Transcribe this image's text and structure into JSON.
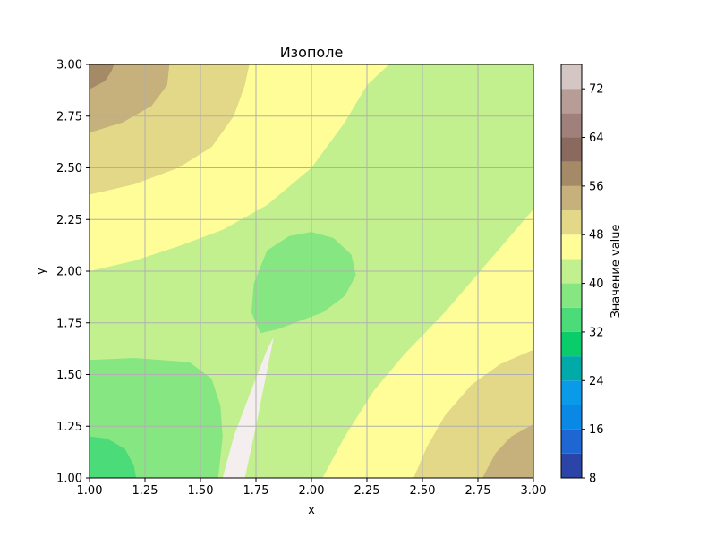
{
  "chart_data": {
    "type": "contourf",
    "title": "Изополе",
    "xlabel": "x",
    "ylabel": "y",
    "xlim": [
      1.0,
      3.0
    ],
    "ylim": [
      1.0,
      3.0
    ],
    "grid": true,
    "x_ticks": [
      "1.00",
      "1.25",
      "1.50",
      "1.75",
      "2.00",
      "2.25",
      "2.50",
      "2.75",
      "3.00"
    ],
    "y_ticks": [
      "1.00",
      "1.25",
      "1.50",
      "1.75",
      "2.00",
      "2.25",
      "2.50",
      "2.75",
      "3.00"
    ],
    "colorbar": {
      "label": "Значение value",
      "range": [
        8,
        76
      ],
      "ticks": [
        "8",
        "16",
        "24",
        "32",
        "40",
        "48",
        "56",
        "64",
        "72"
      ],
      "levels": [
        {
          "from": 8,
          "to": 12,
          "color": "#2a44a8"
        },
        {
          "from": 12,
          "to": 16,
          "color": "#1e66d2"
        },
        {
          "from": 16,
          "to": 20,
          "color": "#0a88e6"
        },
        {
          "from": 20,
          "to": 24,
          "color": "#0a9be8"
        },
        {
          "from": 24,
          "to": 28,
          "color": "#00aaa8"
        },
        {
          "from": 28,
          "to": 32,
          "color": "#0bcc6a"
        },
        {
          "from": 32,
          "to": 36,
          "color": "#4bdb78"
        },
        {
          "from": 36,
          "to": 40,
          "color": "#86e682"
        },
        {
          "from": 40,
          "to": 44,
          "color": "#c2f08e"
        },
        {
          "from": 44,
          "to": 48,
          "color": "#fefd98"
        },
        {
          "from": 48,
          "to": 52,
          "color": "#e3d888"
        },
        {
          "from": 52,
          "to": 56,
          "color": "#c6b07b"
        },
        {
          "from": 56,
          "to": 60,
          "color": "#a48a66"
        },
        {
          "from": 60,
          "to": 64,
          "color": "#8a6a5e"
        },
        {
          "from": 64,
          "to": 68,
          "color": "#a0807a"
        },
        {
          "from": 68,
          "to": 72,
          "color": "#b89c96"
        },
        {
          "from": 72,
          "to": 76,
          "color": "#d4c6c2"
        },
        {
          "from": 76,
          "to": 80,
          "color": "#f4eeee"
        }
      ]
    },
    "regions": [
      {
        "value_range": [
          44,
          48
        ],
        "polygon": [
          [
            1.0,
            2.0
          ],
          [
            1.2,
            2.05
          ],
          [
            1.4,
            2.12
          ],
          [
            1.6,
            2.2
          ],
          [
            1.8,
            2.32
          ],
          [
            2.0,
            2.5
          ],
          [
            2.15,
            2.72
          ],
          [
            2.25,
            2.9
          ],
          [
            2.35,
            3.0
          ],
          [
            1.0,
            3.0
          ]
        ]
      },
      {
        "value_range": [
          44,
          48
        ],
        "polygon": [
          [
            2.05,
            1.0
          ],
          [
            2.15,
            1.2
          ],
          [
            2.28,
            1.42
          ],
          [
            2.42,
            1.6
          ],
          [
            2.6,
            1.8
          ],
          [
            2.8,
            2.05
          ],
          [
            3.0,
            2.3
          ],
          [
            3.0,
            1.0
          ]
        ]
      },
      {
        "value_range": [
          48,
          52
        ],
        "polygon": [
          [
            1.0,
            2.37
          ],
          [
            1.2,
            2.42
          ],
          [
            1.4,
            2.5
          ],
          [
            1.55,
            2.6
          ],
          [
            1.65,
            2.75
          ],
          [
            1.7,
            2.9
          ],
          [
            1.72,
            3.0
          ],
          [
            1.0,
            3.0
          ]
        ]
      },
      {
        "value_range": [
          48,
          52
        ],
        "polygon": [
          [
            2.46,
            1.0
          ],
          [
            2.52,
            1.15
          ],
          [
            2.6,
            1.3
          ],
          [
            2.72,
            1.45
          ],
          [
            2.85,
            1.55
          ],
          [
            3.0,
            1.62
          ],
          [
            3.0,
            1.0
          ]
        ]
      },
      {
        "value_range": [
          52,
          56
        ],
        "polygon": [
          [
            1.0,
            2.67
          ],
          [
            1.15,
            2.72
          ],
          [
            1.28,
            2.8
          ],
          [
            1.35,
            2.9
          ],
          [
            1.36,
            3.0
          ],
          [
            1.0,
            3.0
          ]
        ]
      },
      {
        "value_range": [
          52,
          56
        ],
        "polygon": [
          [
            2.77,
            1.0
          ],
          [
            2.83,
            1.12
          ],
          [
            2.9,
            1.2
          ],
          [
            3.0,
            1.26
          ],
          [
            3.0,
            1.0
          ]
        ]
      },
      {
        "value_range": [
          56,
          60
        ],
        "polygon": [
          [
            1.0,
            2.88
          ],
          [
            1.07,
            2.92
          ],
          [
            1.1,
            2.97
          ],
          [
            1.11,
            3.0
          ],
          [
            1.0,
            3.0
          ]
        ]
      },
      {
        "value_range": [
          36,
          40
        ],
        "polygon": [
          [
            1.0,
            1.0
          ],
          [
            1.0,
            1.57
          ],
          [
            1.2,
            1.58
          ],
          [
            1.45,
            1.56
          ],
          [
            1.55,
            1.48
          ],
          [
            1.59,
            1.35
          ],
          [
            1.6,
            1.2
          ],
          [
            1.58,
            1.0
          ]
        ]
      },
      {
        "value_range": [
          36,
          40
        ],
        "polygon": [
          [
            1.77,
            1.7
          ],
          [
            1.73,
            1.8
          ],
          [
            1.74,
            1.94
          ],
          [
            1.8,
            2.1
          ],
          [
            1.9,
            2.17
          ],
          [
            2.0,
            2.19
          ],
          [
            2.1,
            2.16
          ],
          [
            2.18,
            2.08
          ],
          [
            2.2,
            1.98
          ],
          [
            2.15,
            1.88
          ],
          [
            2.05,
            1.8
          ],
          [
            1.95,
            1.76
          ],
          [
            1.85,
            1.72
          ]
        ]
      },
      {
        "value_range": [
          32,
          36
        ],
        "polygon": [
          [
            1.0,
            1.0
          ],
          [
            1.0,
            1.2
          ],
          [
            1.08,
            1.19
          ],
          [
            1.16,
            1.14
          ],
          [
            1.2,
            1.06
          ],
          [
            1.21,
            1.0
          ]
        ]
      },
      {
        "value_range": [
          76,
          80
        ],
        "polygon": [
          [
            1.6,
            1.0
          ],
          [
            1.7,
            1.0
          ],
          [
            1.75,
            1.25
          ],
          [
            1.83,
            1.68
          ],
          [
            1.8,
            1.62
          ],
          [
            1.72,
            1.4
          ],
          [
            1.65,
            1.2
          ]
        ]
      }
    ]
  }
}
